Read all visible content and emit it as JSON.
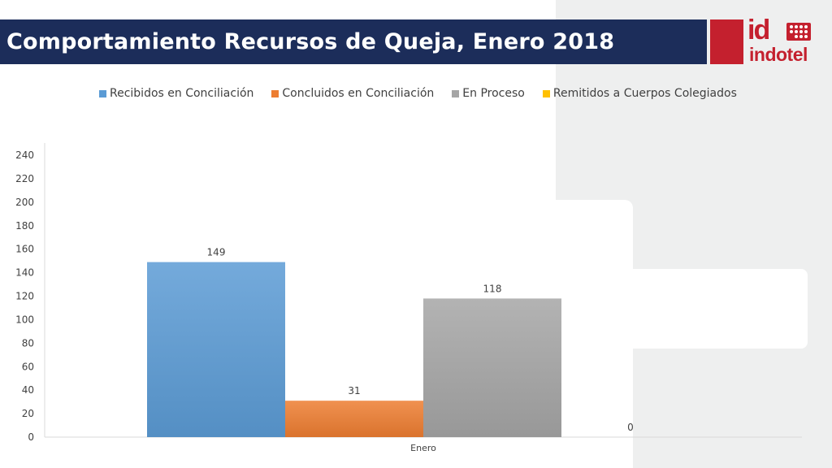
{
  "header": {
    "title": "Comportamiento Recursos de Queja, Enero 2018"
  },
  "logo": {
    "mark": "id",
    "wordmark": "indotel",
    "color": "#c4202e"
  },
  "colors": {
    "title_bar": "#1c2d5a",
    "brand_red": "#c4202e"
  },
  "chart_data": {
    "type": "bar",
    "categories": [
      "Enero"
    ],
    "series": [
      {
        "name": "Recibidos en Conciliación",
        "values": [
          149
        ],
        "color": "#5b9bd5"
      },
      {
        "name": "Concluidos en Conciliación",
        "values": [
          31
        ],
        "color": "#ed7d31"
      },
      {
        "name": "En Proceso",
        "values": [
          118
        ],
        "color": "#a5a5a5"
      },
      {
        "name": "Remitidos a Cuerpos Colegiados",
        "values": [
          0
        ],
        "color": "#ffc000"
      }
    ],
    "ylim": [
      0,
      240
    ],
    "yticks": [
      0,
      20,
      40,
      60,
      80,
      100,
      120,
      140,
      160,
      180,
      200,
      220,
      240
    ],
    "legend_position": "top",
    "grid": false
  }
}
